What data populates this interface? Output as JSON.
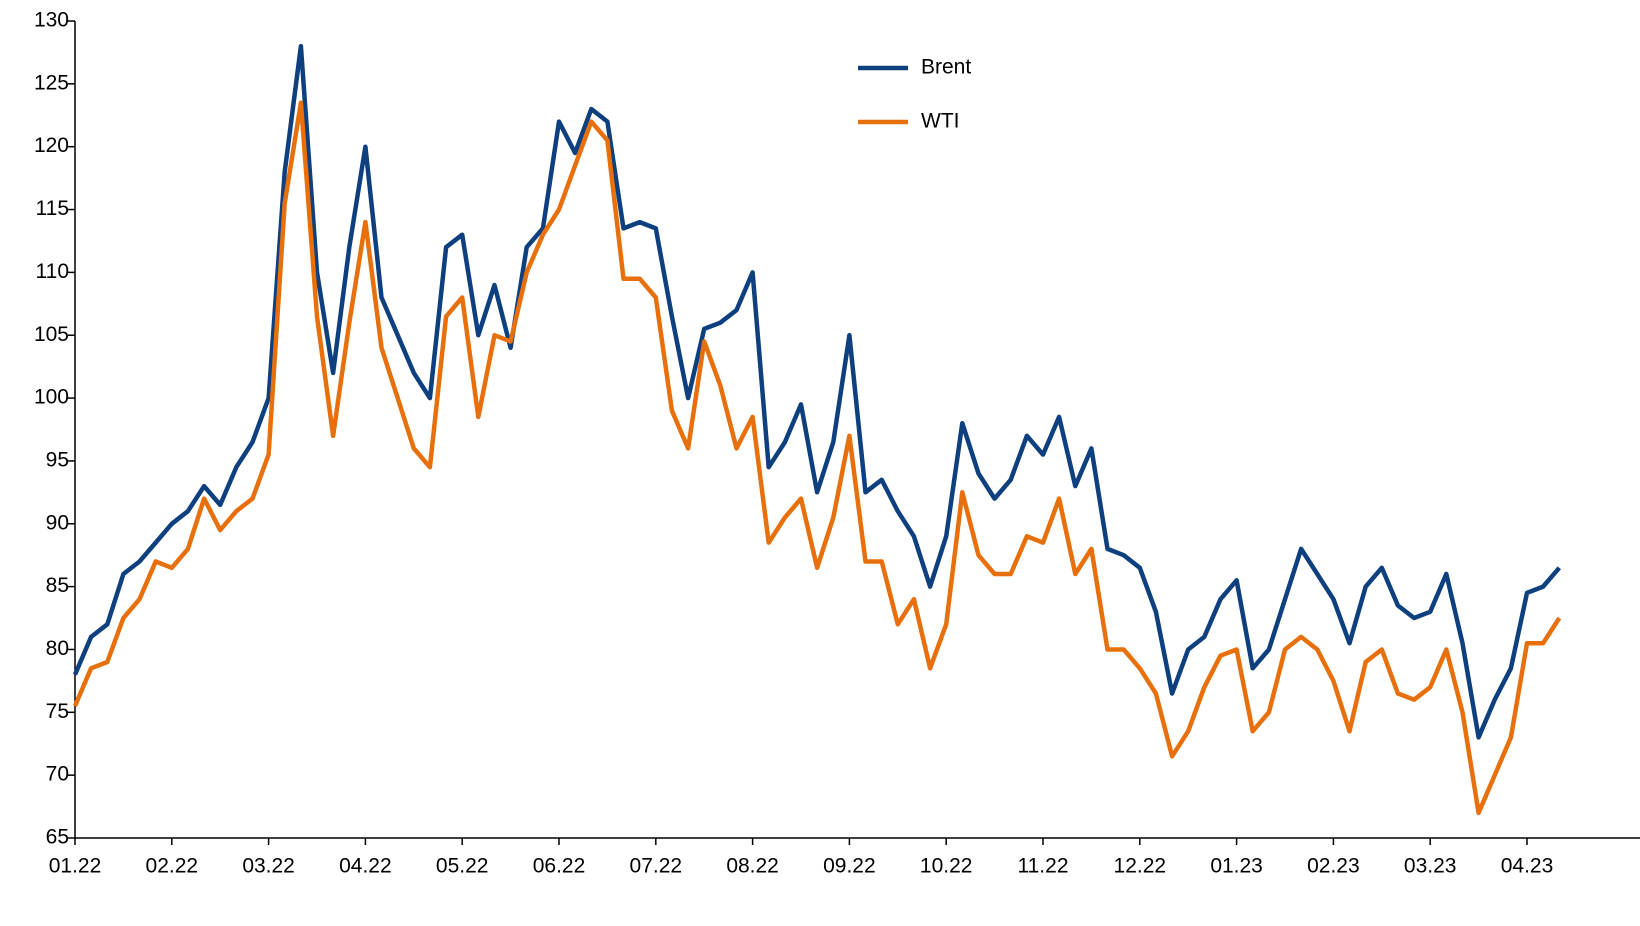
{
  "chart_data": {
    "type": "line",
    "categories": [
      "01.22",
      null,
      null,
      null,
      null,
      null,
      "02.22",
      null,
      null,
      null,
      null,
      null,
      "03.22",
      null,
      null,
      null,
      null,
      null,
      "04.22",
      null,
      null,
      null,
      null,
      null,
      "05.22",
      null,
      null,
      null,
      null,
      null,
      "06.22",
      null,
      null,
      null,
      null,
      null,
      "07.22",
      null,
      null,
      null,
      null,
      null,
      "08.22",
      null,
      null,
      null,
      null,
      null,
      "09.22",
      null,
      null,
      null,
      null,
      null,
      "10.22",
      null,
      null,
      null,
      null,
      null,
      "11.22",
      null,
      null,
      null,
      null,
      null,
      "12.22",
      null,
      null,
      null,
      null,
      null,
      "01.23",
      null,
      null,
      null,
      null,
      null,
      "02.23",
      null,
      null,
      null,
      null,
      null,
      "03.23",
      null,
      null,
      null,
      null,
      null,
      "04.23",
      null,
      null
    ],
    "series": [
      {
        "name": "Brent",
        "color": "#0e3f7e",
        "values": [
          78,
          81,
          82,
          86,
          87,
          88.5,
          90,
          91,
          93,
          91.5,
          94.5,
          96.5,
          100,
          118,
          128,
          110,
          102,
          112,
          120,
          108,
          105,
          102,
          100,
          112,
          113,
          105,
          109,
          104,
          112,
          113.5,
          122,
          119.5,
          123,
          122,
          113.5,
          114,
          113.5,
          106.5,
          100,
          105.5,
          106,
          107,
          110,
          94.5,
          96.5,
          99.5,
          92.5,
          96.5,
          105,
          92.5,
          93.5,
          91,
          89,
          85,
          89,
          98,
          94,
          92,
          93.5,
          97,
          95.5,
          98.5,
          93,
          96,
          88,
          87.5,
          86.5,
          83,
          76.5,
          80,
          81,
          84,
          85.5,
          78.5,
          80,
          84,
          88,
          86,
          84,
          80.5,
          85,
          86.5,
          83.5,
          82.5,
          83,
          86,
          80.5,
          73,
          76,
          78.5,
          84.5,
          85,
          86.5
        ]
      },
      {
        "name": "WTI",
        "color": "#e8700c",
        "values": [
          75.5,
          78.5,
          79,
          82.5,
          84,
          87,
          86.5,
          88,
          92,
          89.5,
          91,
          92,
          95.5,
          115.5,
          123.5,
          106.5,
          97,
          106,
          114,
          104,
          100,
          96,
          94.5,
          106.5,
          108,
          98.5,
          105,
          104.5,
          110,
          113,
          115,
          118.5,
          122,
          120.5,
          109.5,
          109.5,
          108,
          99,
          96,
          104.5,
          101,
          96,
          98.5,
          88.5,
          90.5,
          92,
          86.5,
          90.5,
          97,
          87,
          87,
          82,
          84,
          78.5,
          82,
          92.5,
          87.5,
          86,
          86,
          89,
          88.5,
          92,
          86,
          88,
          80,
          80,
          78.5,
          76.5,
          71.5,
          73.5,
          77,
          79.5,
          80,
          73.5,
          75,
          80,
          81,
          80,
          77.5,
          73.5,
          79,
          80,
          76.5,
          76,
          77,
          80,
          75,
          67,
          70,
          73,
          80.5,
          80.5,
          82.5
        ]
      }
    ],
    "ylim": [
      65,
      130
    ],
    "yticks": [
      65,
      70,
      75,
      80,
      85,
      90,
      95,
      100,
      105,
      110,
      115,
      120,
      125,
      130
    ],
    "grid": false,
    "legend": "top-right"
  }
}
